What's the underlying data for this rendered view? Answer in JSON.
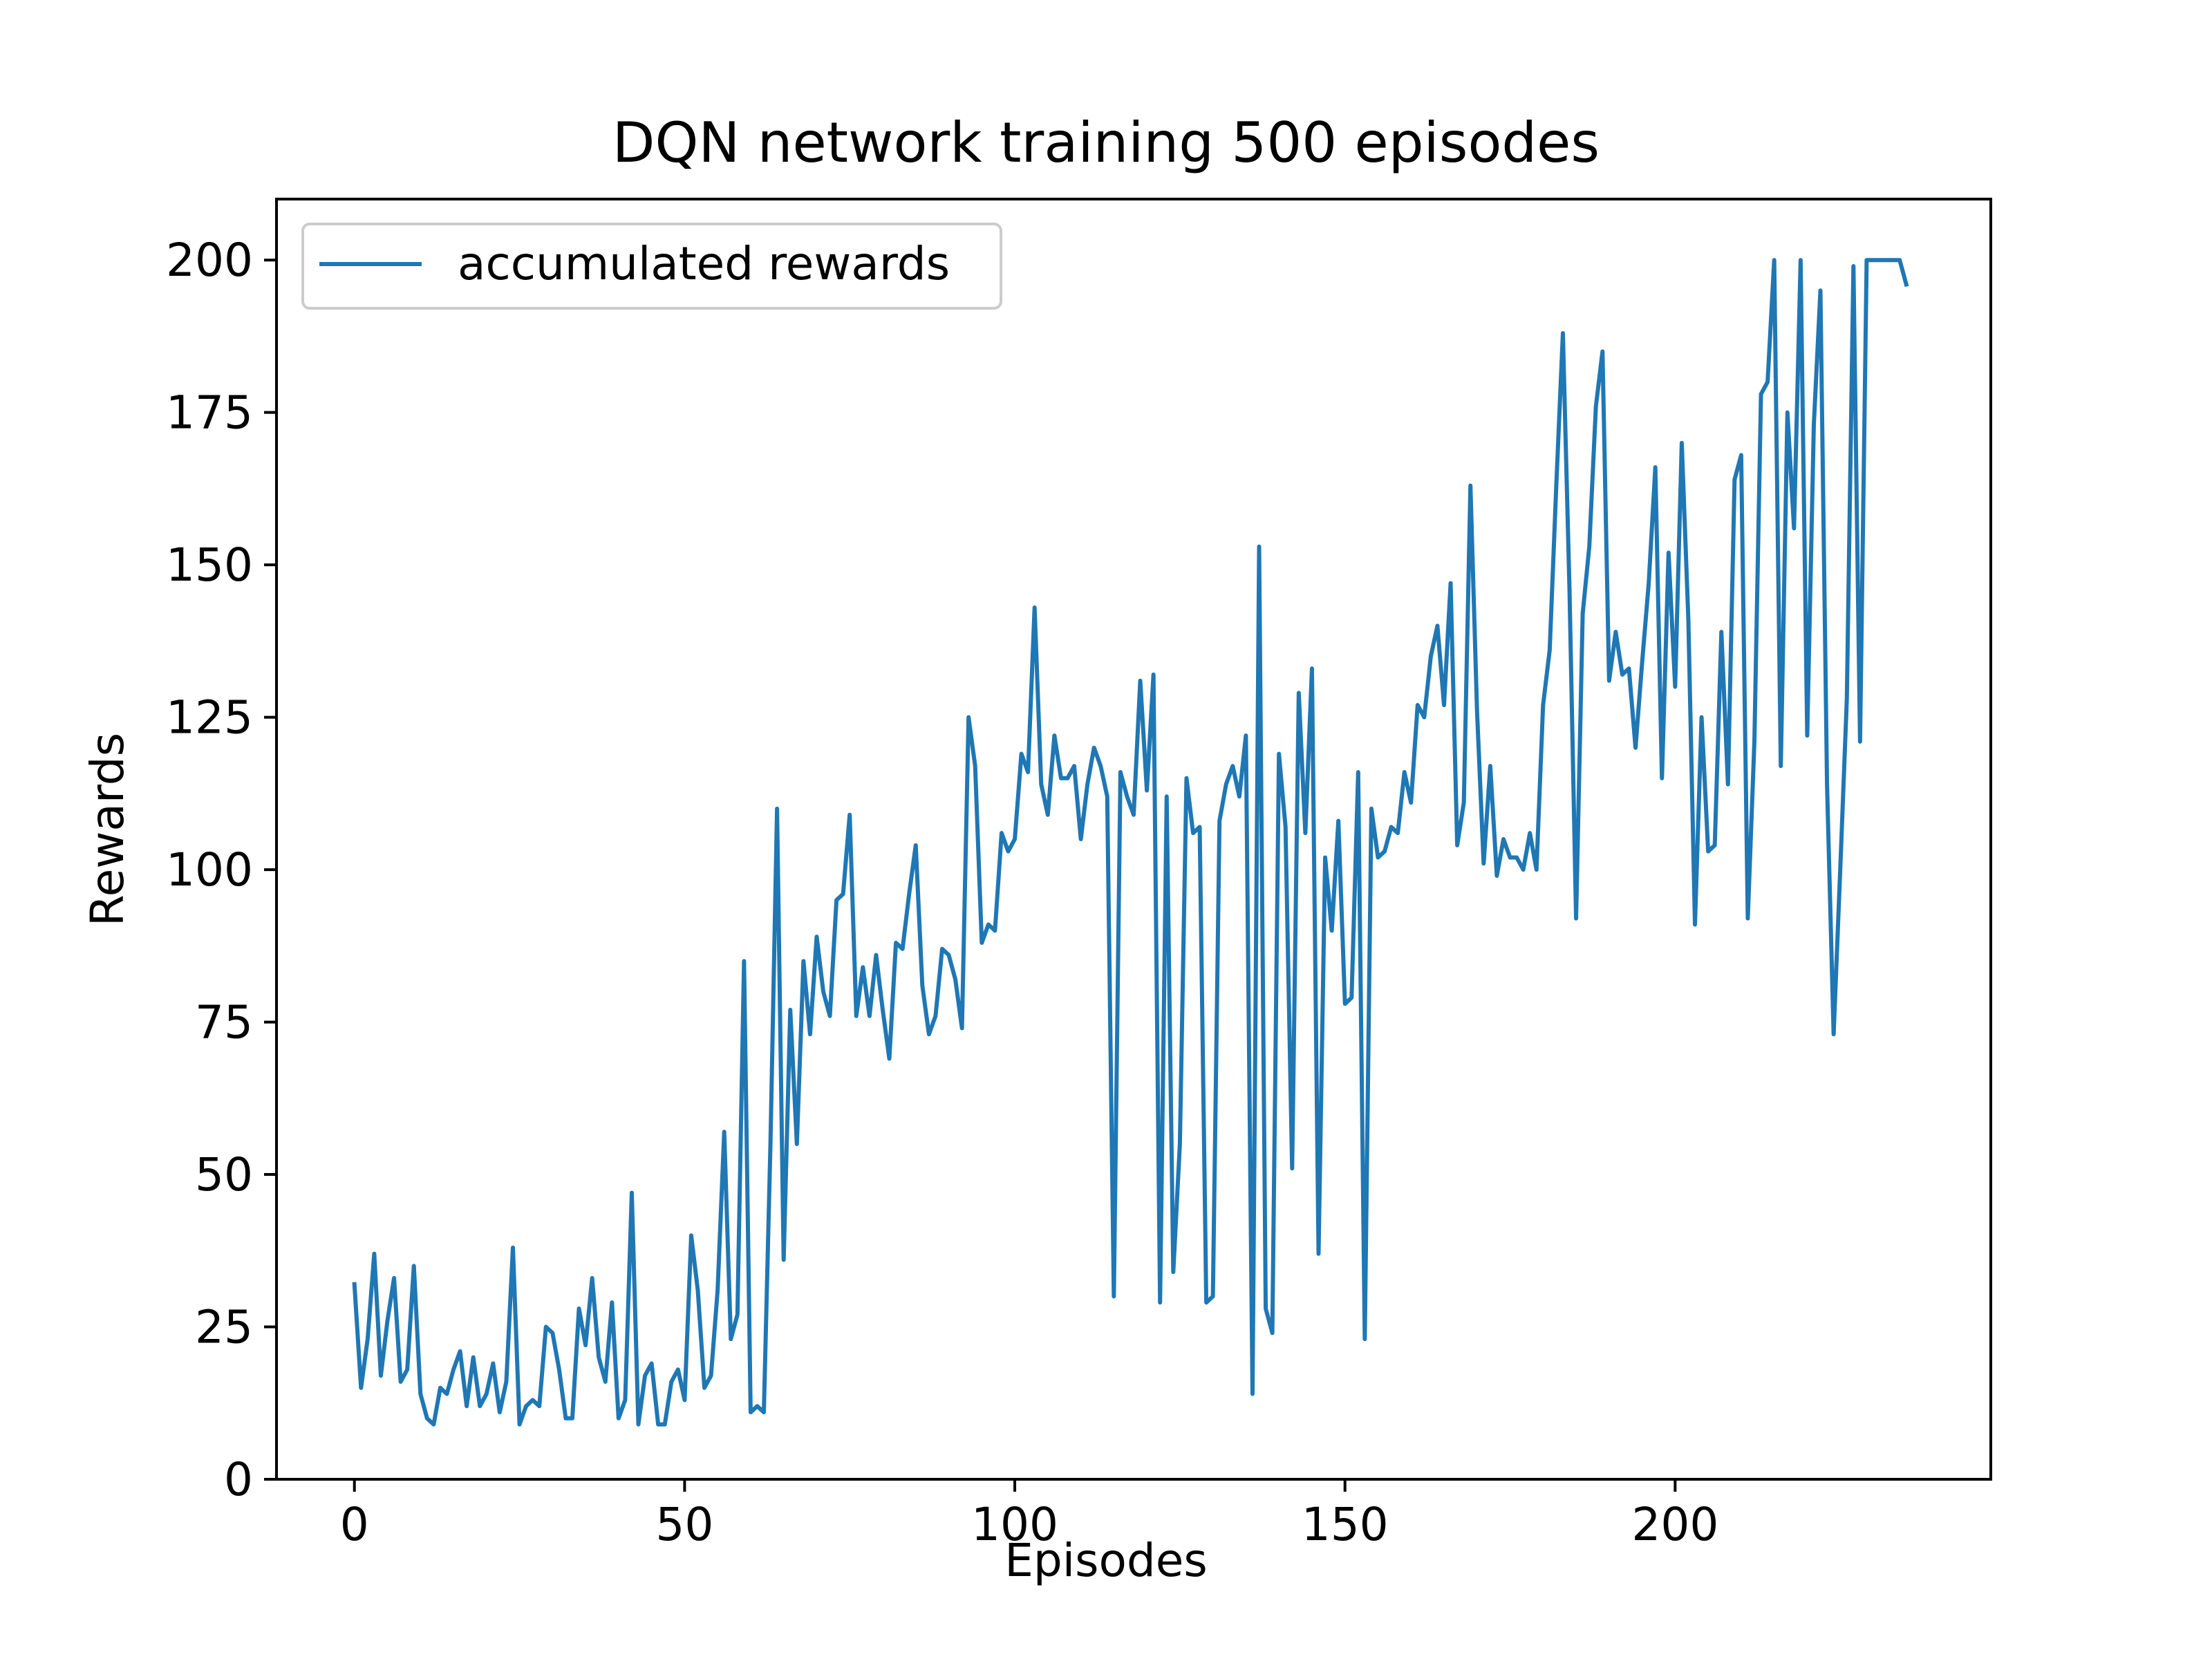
{
  "chart_data": {
    "type": "line",
    "title": "DQN network training 500 episodes",
    "xlabel": "Episodes",
    "ylabel": "Rewards",
    "xlim": [
      -11.8,
      247.8
    ],
    "ylim": [
      0,
      210
    ],
    "xticks": [
      0,
      50,
      100,
      150,
      200
    ],
    "yticks": [
      0,
      25,
      50,
      75,
      100,
      125,
      150,
      175,
      200
    ],
    "grid": false,
    "legend_position": "top-left",
    "series": [
      {
        "name": "accumulated rewards",
        "color": "#1f77b4",
        "x_start": 0,
        "x_step": 1,
        "values": [
          32,
          15,
          23,
          37,
          17,
          26,
          33,
          16,
          18,
          35,
          14,
          10,
          9,
          15,
          14,
          18,
          21,
          12,
          20,
          12,
          14,
          19,
          11,
          16,
          38,
          9,
          12,
          13,
          12,
          25,
          24,
          18,
          10,
          10,
          28,
          22,
          33,
          20,
          16,
          29,
          10,
          13,
          47,
          9,
          17,
          19,
          9,
          9,
          16,
          18,
          13,
          40,
          31,
          15,
          17,
          31,
          57,
          23,
          27,
          85,
          11,
          12,
          11,
          55,
          110,
          36,
          77,
          55,
          85,
          73,
          89,
          80,
          76,
          95,
          96,
          109,
          76,
          84,
          76,
          86,
          77,
          69,
          88,
          87,
          96,
          104,
          81,
          73,
          76,
          87,
          86,
          82,
          74,
          125,
          117,
          88,
          91,
          90,
          106,
          103,
          105,
          119,
          116,
          143,
          114,
          109,
          122,
          115,
          115,
          117,
          105,
          114,
          120,
          117,
          112,
          30,
          116,
          112,
          109,
          131,
          113,
          132,
          29,
          112,
          34,
          55,
          115,
          106,
          107,
          29,
          30,
          108,
          114,
          117,
          112,
          122,
          14,
          153,
          28,
          24,
          119,
          107,
          51,
          129,
          106,
          133,
          37,
          102,
          90,
          108,
          78,
          79,
          116,
          23,
          110,
          102,
          103,
          107,
          106,
          116,
          111,
          127,
          125,
          135,
          140,
          127,
          147,
          104,
          111,
          163,
          126,
          101,
          117,
          99,
          105,
          102,
          102,
          100,
          106,
          100,
          127,
          136,
          163,
          188,
          146,
          92,
          142,
          153,
          176,
          185,
          131,
          139,
          132,
          133,
          120,
          134,
          147,
          166,
          115,
          152,
          130,
          170,
          141,
          91,
          125,
          103,
          104,
          139,
          114,
          164,
          168,
          92,
          121,
          178,
          180,
          200,
          117,
          175,
          156,
          200,
          122,
          173,
          195,
          114,
          73,
          100,
          128,
          199,
          121,
          200,
          200,
          200,
          200,
          200,
          200,
          196
        ]
      }
    ]
  }
}
